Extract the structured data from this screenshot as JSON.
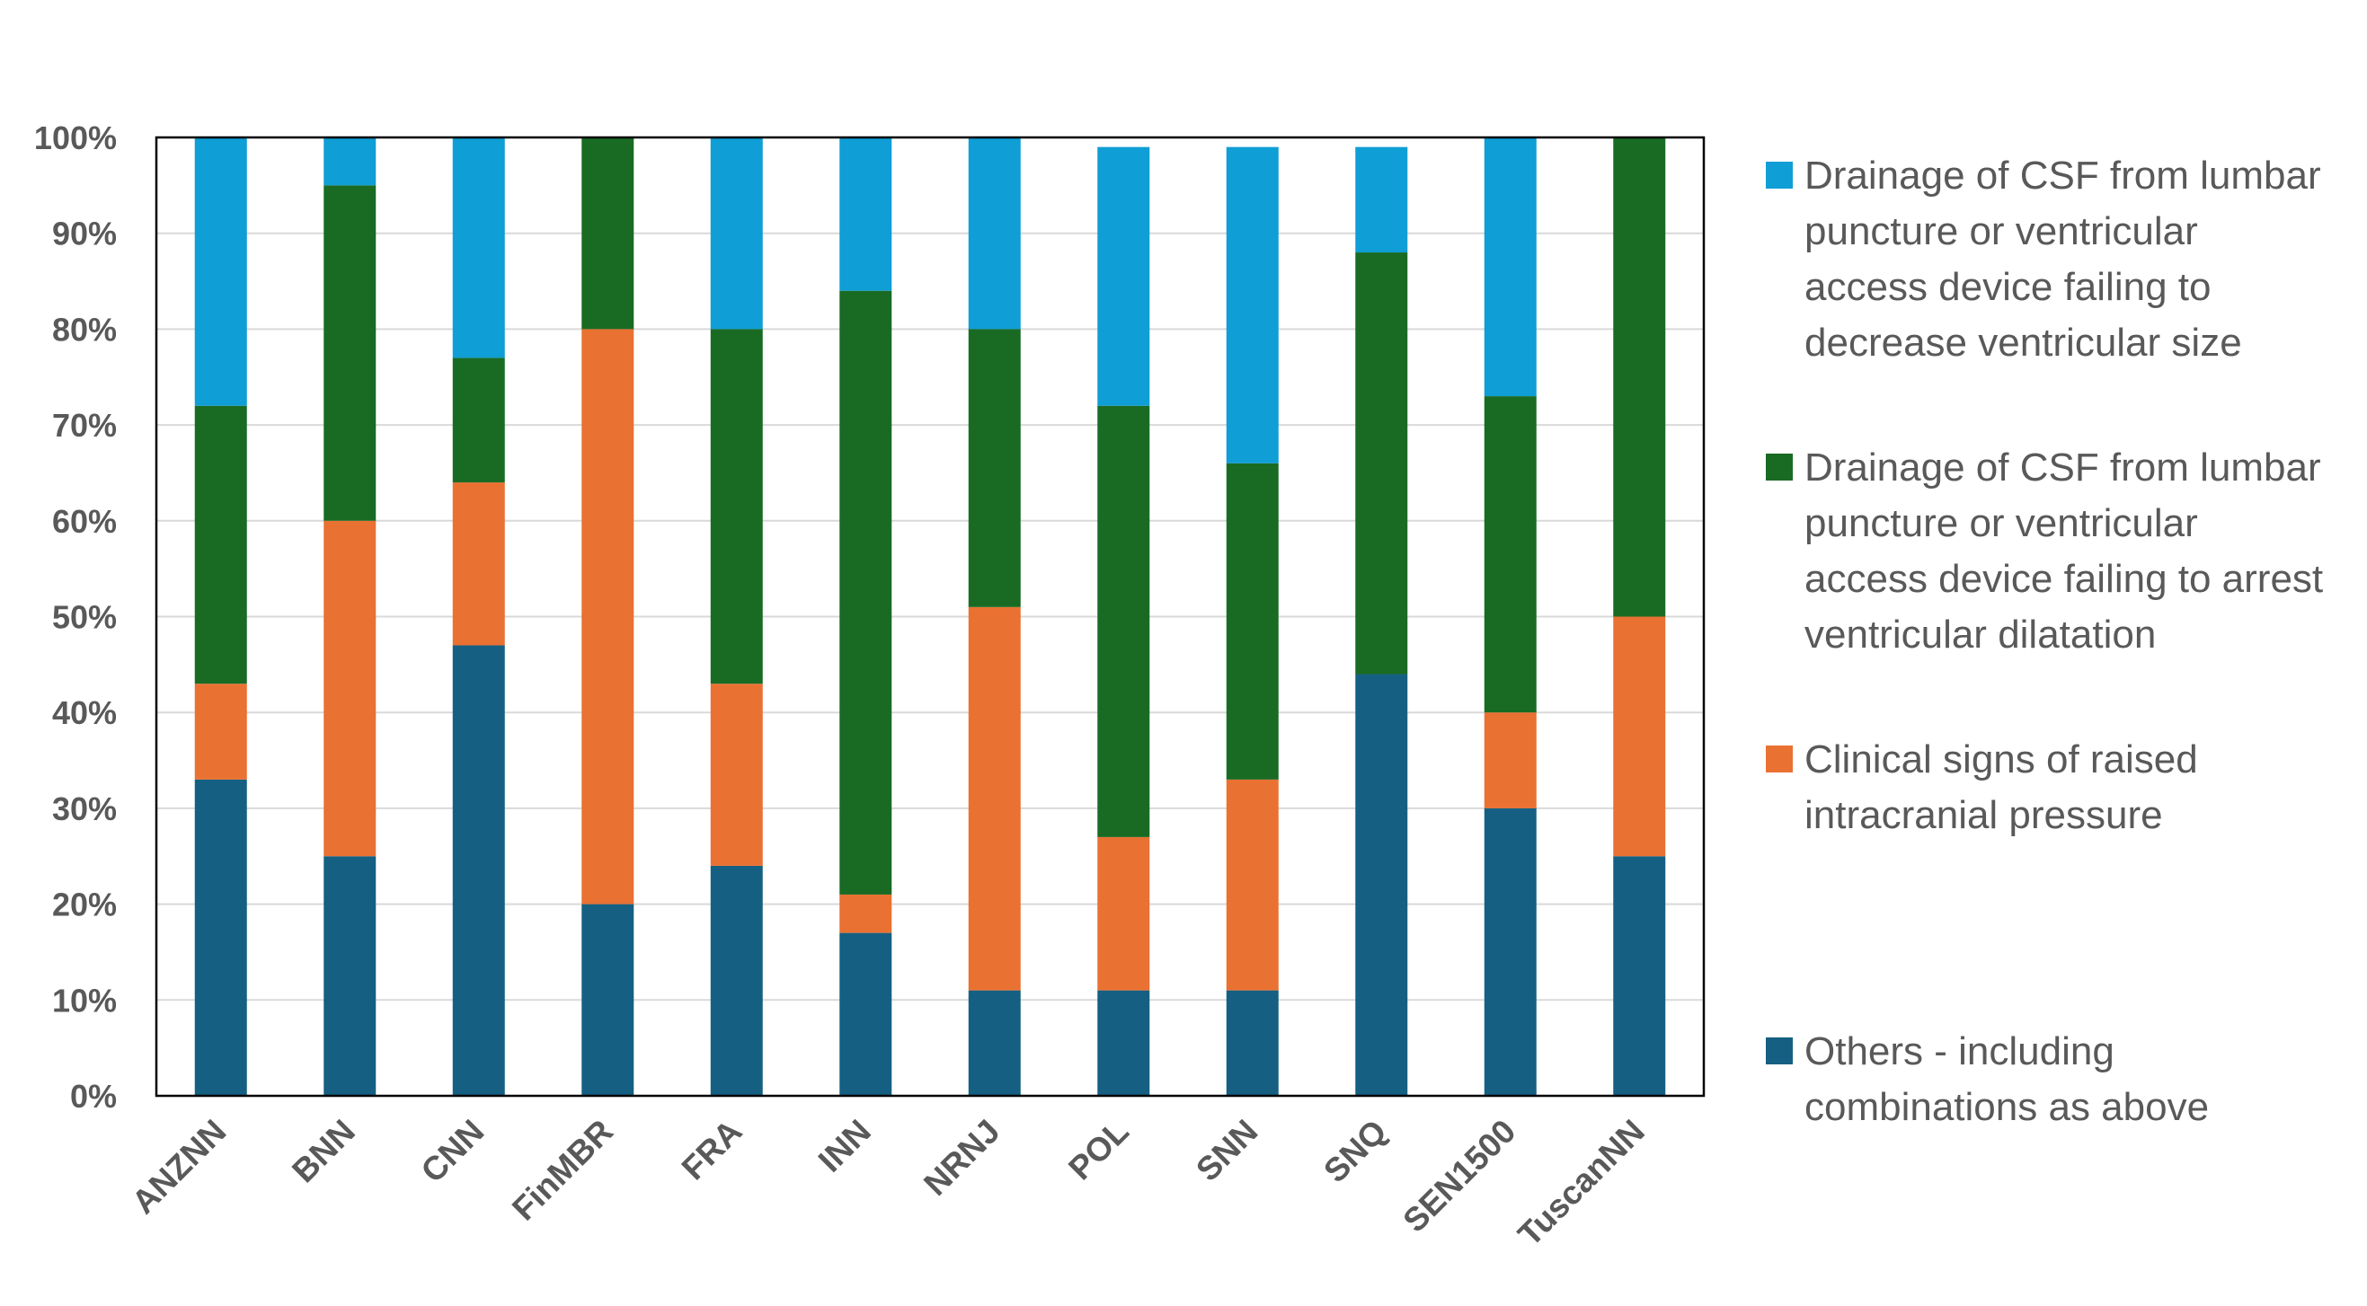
{
  "chart_data": {
    "type": "bar",
    "stacked": true,
    "categories": [
      "ANZNN",
      "BNN",
      "CNN",
      "FinMBR",
      "FRA",
      "INN",
      "NRNJ",
      "POL",
      "SNN",
      "SNQ",
      "SEN1500",
      "TuscanNN"
    ],
    "series": [
      {
        "name": "Others - including combinations as above",
        "color": "#156082",
        "values": [
          33,
          25,
          47,
          20,
          24,
          17,
          11,
          11,
          11,
          44,
          30,
          25
        ]
      },
      {
        "name": "Clinical signs of raised intracranial pressure",
        "color": "#E97132",
        "values": [
          10,
          35,
          17,
          60,
          19,
          4,
          40,
          16,
          22,
          0,
          10,
          25
        ]
      },
      {
        "name": "Drainage of CSF from lumbar puncture or ventricular access device failing to arrest ventricular dilatation",
        "color": "#196B24",
        "values": [
          29,
          35,
          13,
          20,
          37,
          63,
          29,
          45,
          33,
          44,
          33,
          50
        ]
      },
      {
        "name": "Drainage of CSF from lumbar puncture or ventricular access device failing to decrease ventricular size",
        "color": "#0F9ED5",
        "values": [
          28,
          5,
          23,
          0,
          20,
          16,
          20,
          27,
          33,
          11,
          27,
          0
        ]
      }
    ],
    "legend": {
      "position": "right",
      "entries": [
        {
          "lines": [
            "Drainage of CSF from lumbar",
            "puncture or ventricular",
            "access device failing to",
            "decrease ventricular size"
          ],
          "color": "#0F9ED5"
        },
        {
          "lines": [
            "Drainage of CSF from lumbar",
            "puncture or ventricular",
            "access device failing to arrest",
            "ventricular dilatation"
          ],
          "color": "#196B24"
        },
        {
          "lines": [
            "Clinical signs of raised",
            "intracranial pressure"
          ],
          "color": "#E97132"
        },
        {
          "lines": [
            "Others - including",
            "combinations as above"
          ],
          "color": "#156082"
        }
      ]
    },
    "y_ticks": [
      "0%",
      "10%",
      "20%",
      "30%",
      "40%",
      "50%",
      "60%",
      "70%",
      "80%",
      "90%",
      "100%"
    ],
    "ylim": [
      0,
      100
    ],
    "grid": true
  }
}
